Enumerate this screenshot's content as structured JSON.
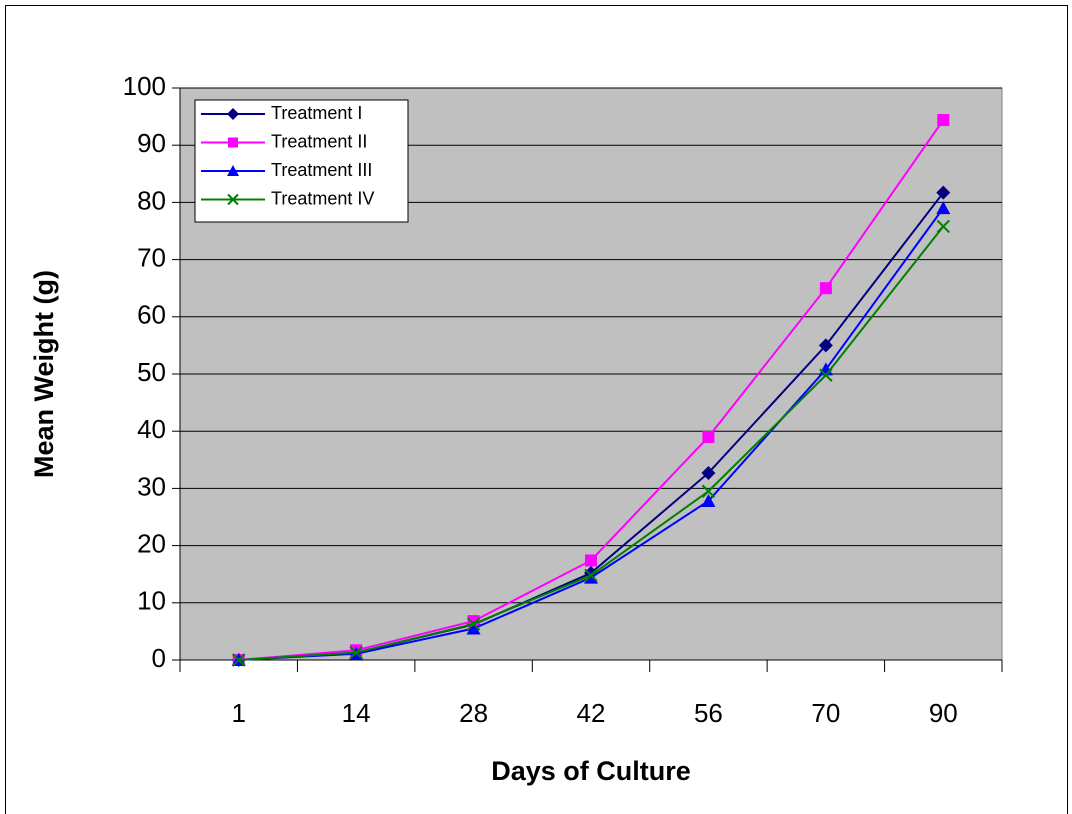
{
  "chart_data": {
    "type": "line",
    "x_label": "Days of Culture",
    "y_label": "Mean Weight (g)",
    "categories": [
      "1",
      "14",
      "28",
      "42",
      "56",
      "70",
      "90"
    ],
    "series": [
      {
        "name": "Treatment I",
        "color": "#000080",
        "marker": "diamond",
        "values": [
          0,
          1.3,
          6.2,
          15.2,
          32.7,
          55,
          81.7
        ]
      },
      {
        "name": "Treatment II",
        "color": "#ff00ff",
        "marker": "square",
        "values": [
          0,
          1.7,
          6.8,
          17.4,
          39,
          65,
          94.4
        ]
      },
      {
        "name": "Treatment III",
        "color": "#0000ff",
        "marker": "triangle",
        "values": [
          0,
          1.1,
          5.5,
          14.4,
          27.8,
          50.8,
          79
        ]
      },
      {
        "name": "Treatment IV",
        "color": "#008000",
        "marker": "x",
        "values": [
          0,
          1.3,
          6.3,
          14.8,
          29.5,
          49.8,
          75.8
        ]
      }
    ],
    "ylim": [
      0,
      100
    ],
    "yticks": [
      0,
      10,
      20,
      30,
      40,
      50,
      60,
      70,
      80,
      90,
      100
    ],
    "grid": true,
    "legend": "upper left"
  }
}
